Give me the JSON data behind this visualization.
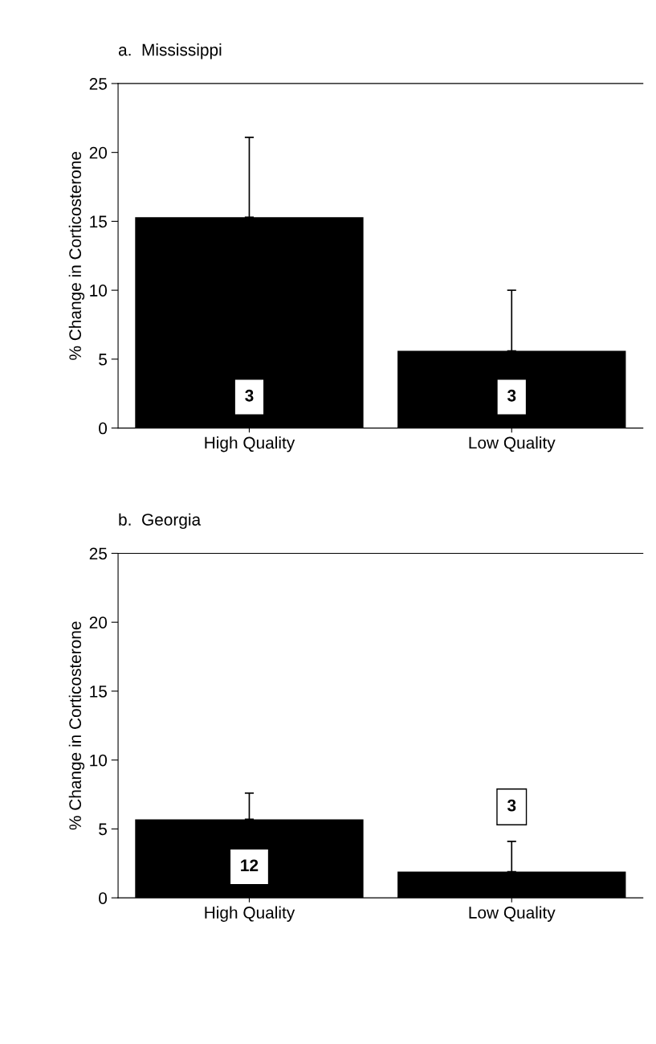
{
  "chart_data": [
    {
      "type": "bar",
      "title": "a.  Mississippi",
      "ylabel": "% Change in Corticosterone",
      "categories": [
        "High Quality",
        "Low Quality"
      ],
      "values": [
        15.3,
        5.6
      ],
      "errors": [
        [
          15.3,
          21.1
        ],
        [
          5.6,
          10.0
        ]
      ],
      "color": "#000000",
      "ylim": [
        0,
        25
      ],
      "yticks": [
        0,
        5,
        10,
        15,
        20,
        25
      ],
      "annotations": [
        "3",
        "3"
      ]
    },
    {
      "type": "bar",
      "title": "b.  Georgia",
      "ylabel": "% Change in Corticosterone",
      "categories": [
        "High Quality",
        "Low Quality"
      ],
      "values": [
        5.7,
        1.9
      ],
      "errors": [
        [
          5.7,
          7.6
        ],
        [
          1.9,
          4.1
        ]
      ],
      "color": "#000000",
      "ylim": [
        0,
        25
      ],
      "yticks": [
        0,
        5,
        10,
        15,
        20,
        25
      ],
      "annotations": [
        "12",
        "3"
      ]
    }
  ]
}
